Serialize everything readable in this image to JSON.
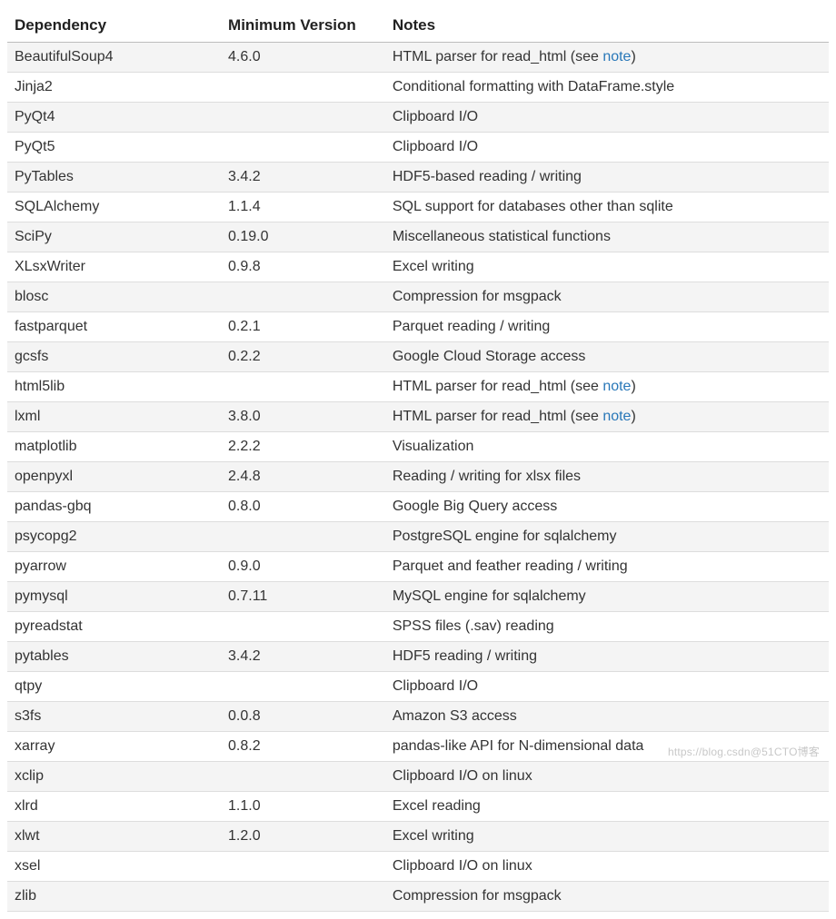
{
  "table": {
    "columns": [
      {
        "key": "dependency",
        "label": "Dependency",
        "width": "26%"
      },
      {
        "key": "version",
        "label": "Minimum Version",
        "width": "20%"
      },
      {
        "key": "notes",
        "label": "Notes",
        "width": "54%"
      }
    ],
    "header_bg": "#ffffff",
    "header_color": "#222222",
    "header_fontsize": 17,
    "header_fontweight": 700,
    "row_odd_bg": "#f4f4f4",
    "row_even_bg": "#ffffff",
    "border_color": "#dddddd",
    "header_border_color": "#bdbdbd",
    "text_color": "#333333",
    "link_color": "#2877b8",
    "cell_fontsize": 16,
    "rows": [
      {
        "dependency": "BeautifulSoup4",
        "version": "4.6.0",
        "notes_parts": [
          "HTML parser for read_html (see ",
          {
            "link": "note"
          },
          ")"
        ]
      },
      {
        "dependency": "Jinja2",
        "version": "",
        "notes_parts": [
          "Conditional formatting with DataFrame.style"
        ]
      },
      {
        "dependency": "PyQt4",
        "version": "",
        "notes_parts": [
          "Clipboard I/O"
        ]
      },
      {
        "dependency": "PyQt5",
        "version": "",
        "notes_parts": [
          "Clipboard I/O"
        ]
      },
      {
        "dependency": "PyTables",
        "version": "3.4.2",
        "notes_parts": [
          "HDF5-based reading / writing"
        ]
      },
      {
        "dependency": "SQLAlchemy",
        "version": "1.1.4",
        "notes_parts": [
          "SQL support for databases other than sqlite"
        ]
      },
      {
        "dependency": "SciPy",
        "version": "0.19.0",
        "notes_parts": [
          "Miscellaneous statistical functions"
        ]
      },
      {
        "dependency": "XLsxWriter",
        "version": "0.9.8",
        "notes_parts": [
          "Excel writing"
        ]
      },
      {
        "dependency": "blosc",
        "version": "",
        "notes_parts": [
          "Compression for msgpack"
        ]
      },
      {
        "dependency": "fastparquet",
        "version": "0.2.1",
        "notes_parts": [
          "Parquet reading / writing"
        ]
      },
      {
        "dependency": "gcsfs",
        "version": "0.2.2",
        "notes_parts": [
          "Google Cloud Storage access"
        ]
      },
      {
        "dependency": "html5lib",
        "version": "",
        "notes_parts": [
          "HTML parser for read_html (see ",
          {
            "link": "note"
          },
          ")"
        ]
      },
      {
        "dependency": "lxml",
        "version": "3.8.0",
        "notes_parts": [
          "HTML parser for read_html (see ",
          {
            "link": "note"
          },
          ")"
        ]
      },
      {
        "dependency": "matplotlib",
        "version": "2.2.2",
        "notes_parts": [
          "Visualization"
        ]
      },
      {
        "dependency": "openpyxl",
        "version": "2.4.8",
        "notes_parts": [
          "Reading / writing for xlsx files"
        ]
      },
      {
        "dependency": "pandas-gbq",
        "version": "0.8.0",
        "notes_parts": [
          "Google Big Query access"
        ]
      },
      {
        "dependency": "psycopg2",
        "version": "",
        "notes_parts": [
          "PostgreSQL engine for sqlalchemy"
        ]
      },
      {
        "dependency": "pyarrow",
        "version": "0.9.0",
        "notes_parts": [
          "Parquet and feather reading / writing"
        ]
      },
      {
        "dependency": "pymysql",
        "version": "0.7.11",
        "notes_parts": [
          "MySQL engine for sqlalchemy"
        ]
      },
      {
        "dependency": "pyreadstat",
        "version": "",
        "notes_parts": [
          "SPSS files (.sav) reading"
        ]
      },
      {
        "dependency": "pytables",
        "version": "3.4.2",
        "notes_parts": [
          "HDF5 reading / writing"
        ]
      },
      {
        "dependency": "qtpy",
        "version": "",
        "notes_parts": [
          "Clipboard I/O"
        ]
      },
      {
        "dependency": "s3fs",
        "version": "0.0.8",
        "notes_parts": [
          "Amazon S3 access"
        ]
      },
      {
        "dependency": "xarray",
        "version": "0.8.2",
        "notes_parts": [
          "pandas-like API for N-dimensional data"
        ]
      },
      {
        "dependency": "xclip",
        "version": "",
        "notes_parts": [
          "Clipboard I/O on linux"
        ]
      },
      {
        "dependency": "xlrd",
        "version": "1.1.0",
        "notes_parts": [
          "Excel reading"
        ]
      },
      {
        "dependency": "xlwt",
        "version": "1.2.0",
        "notes_parts": [
          "Excel writing"
        ]
      },
      {
        "dependency": "xsel",
        "version": "",
        "notes_parts": [
          "Clipboard I/O on linux"
        ]
      },
      {
        "dependency": "zlib",
        "version": "",
        "notes_parts": [
          "Compression for msgpack"
        ]
      }
    ]
  },
  "watermark": "https://blog.csdn@51CTO博客"
}
